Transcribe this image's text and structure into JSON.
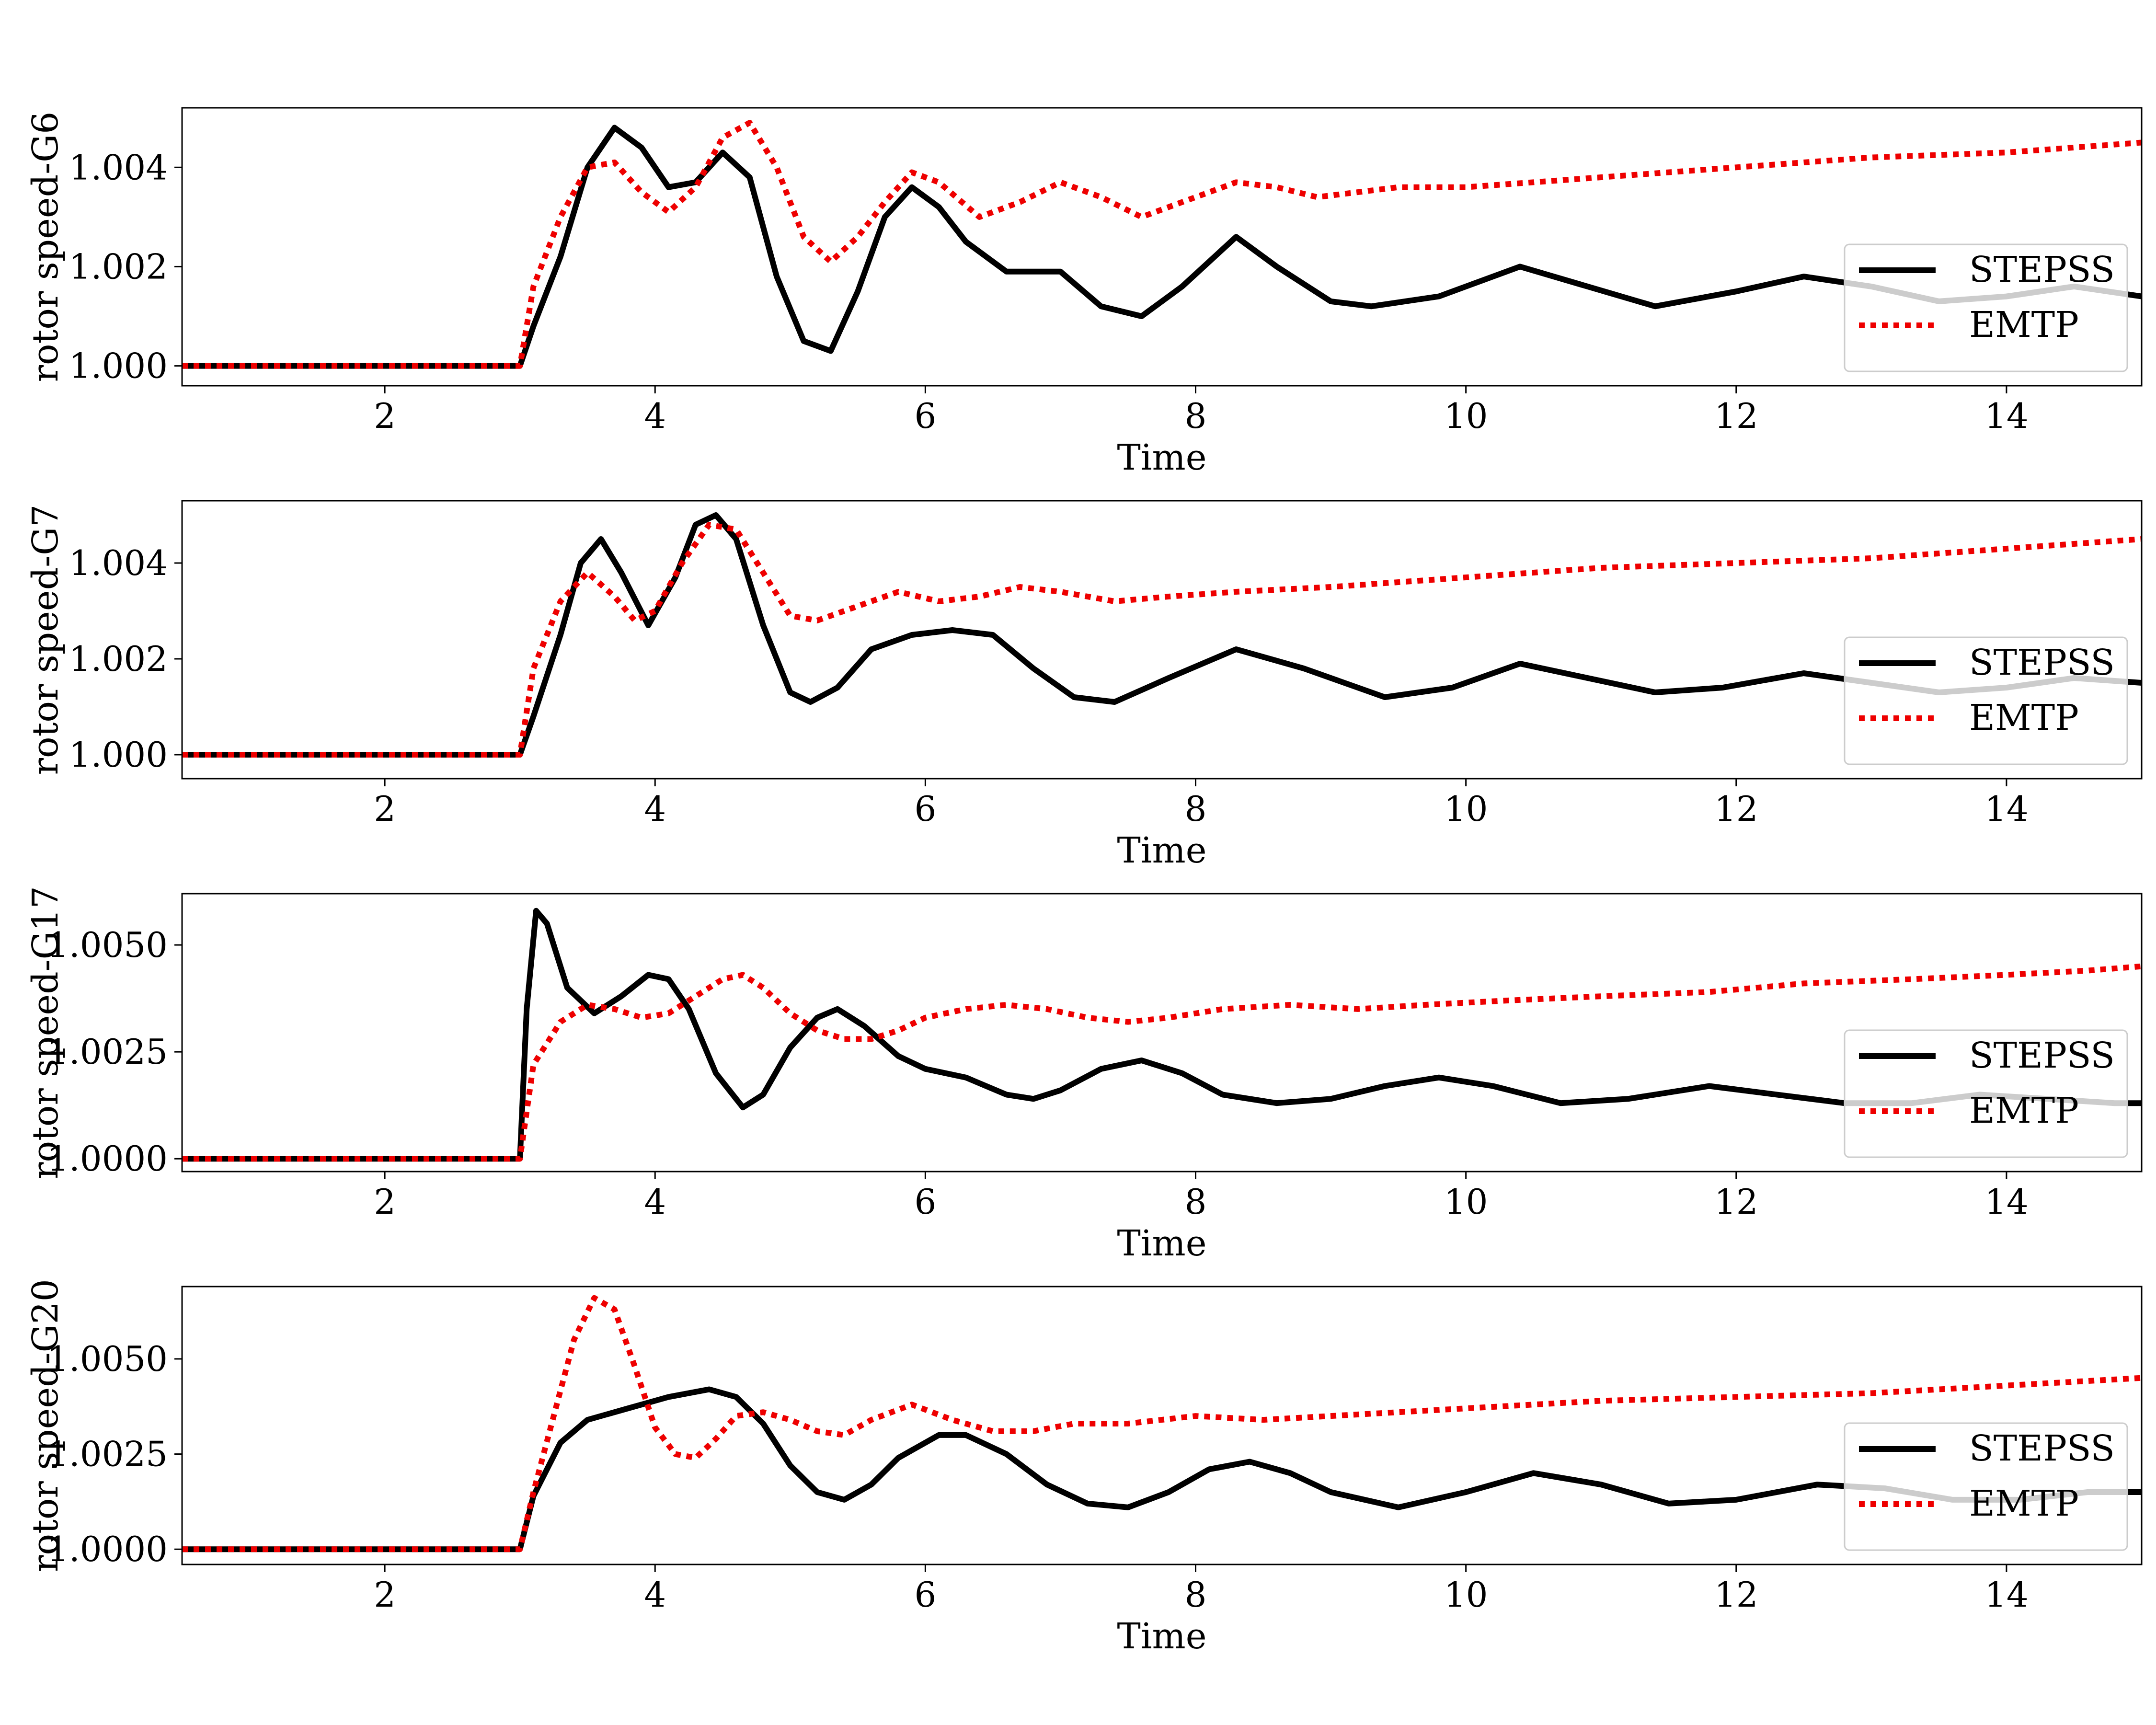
{
  "chart_data": [
    {
      "type": "line",
      "ylabel": "rotor speed-G6",
      "xlabel": "Time",
      "xlim": [
        0.5,
        15
      ],
      "ylim": [
        0.9996,
        1.0052
      ],
      "xticks": [
        2,
        4,
        6,
        8,
        10,
        12,
        14
      ],
      "yticks": [
        1.0,
        1.002,
        1.004
      ],
      "ytick_labels": [
        "1.000",
        "1.002",
        "1.004"
      ],
      "legend": "lower-right",
      "grid": false,
      "series": [
        {
          "name": "STEPSS",
          "color": "#000000",
          "style": "solid",
          "x": [
            0.5,
            3.0,
            3.1,
            3.3,
            3.5,
            3.7,
            3.9,
            4.1,
            4.3,
            4.5,
            4.7,
            4.9,
            5.1,
            5.3,
            5.5,
            5.7,
            5.9,
            6.1,
            6.3,
            6.6,
            7.0,
            7.3,
            7.6,
            7.9,
            8.3,
            8.6,
            9.0,
            9.3,
            9.8,
            10.4,
            10.9,
            11.4,
            12.0,
            12.5,
            13.0,
            13.5,
            14.0,
            14.5,
            15.0
          ],
          "y": [
            1.0,
            1.0,
            1.0008,
            1.0022,
            1.004,
            1.0048,
            1.0044,
            1.0036,
            1.0037,
            1.0043,
            1.0038,
            1.0018,
            1.0005,
            1.0003,
            1.0015,
            1.003,
            1.0036,
            1.0032,
            1.0025,
            1.0019,
            1.0019,
            1.0012,
            1.001,
            1.0016,
            1.0026,
            1.002,
            1.0013,
            1.0012,
            1.0014,
            1.002,
            1.0016,
            1.0012,
            1.0015,
            1.0018,
            1.0016,
            1.0013,
            1.0014,
            1.0016,
            1.0014
          ]
        },
        {
          "name": "EMTP",
          "color": "#ee0000",
          "style": "dotted",
          "x": [
            0.5,
            3.0,
            3.1,
            3.3,
            3.5,
            3.7,
            3.9,
            4.1,
            4.3,
            4.5,
            4.7,
            4.9,
            5.1,
            5.3,
            5.5,
            5.7,
            5.9,
            6.1,
            6.4,
            6.7,
            7.0,
            7.3,
            7.6,
            7.9,
            8.3,
            8.6,
            8.9,
            9.5,
            10.0,
            11.0,
            12.0,
            13.0,
            14.0,
            15.0
          ],
          "y": [
            1.0,
            1.0,
            1.0016,
            1.003,
            1.004,
            1.0041,
            1.0035,
            1.0031,
            1.0036,
            1.0046,
            1.0049,
            1.004,
            1.0026,
            1.0021,
            1.0026,
            1.0033,
            1.0039,
            1.0037,
            1.003,
            1.0033,
            1.0037,
            1.0034,
            1.003,
            1.0033,
            1.0037,
            1.0036,
            1.0034,
            1.0036,
            1.0036,
            1.0038,
            1.004,
            1.0042,
            1.0043,
            1.0045
          ]
        }
      ]
    },
    {
      "type": "line",
      "ylabel": "rotor speed-G7",
      "xlabel": "Time",
      "xlim": [
        0.5,
        15
      ],
      "ylim": [
        0.9995,
        1.0053
      ],
      "xticks": [
        2,
        4,
        6,
        8,
        10,
        12,
        14
      ],
      "yticks": [
        1.0,
        1.002,
        1.004
      ],
      "ytick_labels": [
        "1.000",
        "1.002",
        "1.004"
      ],
      "legend": "lower-right",
      "grid": false,
      "series": [
        {
          "name": "STEPSS",
          "color": "#000000",
          "style": "solid",
          "x": [
            0.5,
            3.0,
            3.1,
            3.3,
            3.45,
            3.6,
            3.75,
            3.95,
            4.15,
            4.3,
            4.45,
            4.6,
            4.8,
            5.0,
            5.15,
            5.35,
            5.6,
            5.9,
            6.2,
            6.5,
            6.8,
            7.1,
            7.4,
            7.8,
            8.3,
            8.8,
            9.4,
            9.9,
            10.4,
            10.9,
            11.4,
            11.9,
            12.5,
            13.0,
            13.5,
            14.0,
            14.5,
            15.0
          ],
          "y": [
            1.0,
            1.0,
            1.0008,
            1.0025,
            1.004,
            1.0045,
            1.0038,
            1.0027,
            1.0037,
            1.0048,
            1.005,
            1.0045,
            1.0027,
            1.0013,
            1.0011,
            1.0014,
            1.0022,
            1.0025,
            1.0026,
            1.0025,
            1.0018,
            1.0012,
            1.0011,
            1.0016,
            1.0022,
            1.0018,
            1.0012,
            1.0014,
            1.0019,
            1.0016,
            1.0013,
            1.0014,
            1.0017,
            1.0015,
            1.0013,
            1.0014,
            1.0016,
            1.0015
          ]
        },
        {
          "name": "EMTP",
          "color": "#ee0000",
          "style": "dotted",
          "x": [
            0.5,
            3.0,
            3.1,
            3.3,
            3.5,
            3.7,
            3.85,
            4.0,
            4.2,
            4.4,
            4.6,
            4.8,
            5.0,
            5.2,
            5.5,
            5.8,
            6.1,
            6.4,
            6.7,
            7.0,
            7.4,
            7.8,
            8.3,
            9.0,
            10.0,
            11.0,
            12.0,
            13.0,
            14.0,
            15.0
          ],
          "y": [
            1.0,
            1.0,
            1.0018,
            1.0032,
            1.0038,
            1.0033,
            1.0028,
            1.003,
            1.004,
            1.0048,
            1.0047,
            1.0038,
            1.0029,
            1.0028,
            1.0031,
            1.0034,
            1.0032,
            1.0033,
            1.0035,
            1.0034,
            1.0032,
            1.0033,
            1.0034,
            1.0035,
            1.0037,
            1.0039,
            1.004,
            1.0041,
            1.0043,
            1.0045
          ]
        }
      ]
    },
    {
      "type": "line",
      "ylabel": "rotor speed-G17",
      "xlabel": "Time",
      "xlim": [
        0.5,
        15
      ],
      "ylim": [
        0.9997,
        1.0062
      ],
      "xticks": [
        2,
        4,
        6,
        8,
        10,
        12,
        14
      ],
      "yticks": [
        1.0,
        1.0025,
        1.005
      ],
      "ytick_labels": [
        "1.0000",
        "1.0025",
        "1.0050"
      ],
      "legend": "lower-right",
      "grid": false,
      "series": [
        {
          "name": "STEPSS",
          "color": "#000000",
          "style": "solid",
          "x": [
            0.5,
            3.0,
            3.05,
            3.12,
            3.2,
            3.35,
            3.55,
            3.75,
            3.95,
            4.1,
            4.25,
            4.45,
            4.65,
            4.8,
            5.0,
            5.2,
            5.35,
            5.55,
            5.8,
            6.0,
            6.3,
            6.6,
            6.8,
            7.0,
            7.3,
            7.6,
            7.9,
            8.2,
            8.6,
            9.0,
            9.4,
            9.8,
            10.2,
            10.7,
            11.2,
            11.8,
            12.3,
            12.8,
            13.3,
            13.8,
            14.3,
            14.8,
            15.0
          ],
          "y": [
            1.0,
            1.0,
            1.0035,
            1.0058,
            1.0055,
            1.004,
            1.0034,
            1.0038,
            1.0043,
            1.0042,
            1.0035,
            1.002,
            1.0012,
            1.0015,
            1.0026,
            1.0033,
            1.0035,
            1.0031,
            1.0024,
            1.0021,
            1.0019,
            1.0015,
            1.0014,
            1.0016,
            1.0021,
            1.0023,
            1.002,
            1.0015,
            1.0013,
            1.0014,
            1.0017,
            1.0019,
            1.0017,
            1.0013,
            1.0014,
            1.0017,
            1.0015,
            1.0013,
            1.0013,
            1.0015,
            1.0014,
            1.0013,
            1.0013
          ]
        },
        {
          "name": "EMTP",
          "color": "#ee0000",
          "style": "dotted",
          "x": [
            0.5,
            3.0,
            3.1,
            3.3,
            3.5,
            3.7,
            3.9,
            4.1,
            4.3,
            4.5,
            4.65,
            4.8,
            5.0,
            5.2,
            5.4,
            5.6,
            5.8,
            6.0,
            6.3,
            6.6,
            6.9,
            7.2,
            7.5,
            7.8,
            8.2,
            8.7,
            9.2,
            9.7,
            10.3,
            11.0,
            11.8,
            12.5,
            13.3,
            14.0,
            14.6,
            15.0
          ],
          "y": [
            1.0,
            1.0,
            1.0022,
            1.0032,
            1.0036,
            1.0035,
            1.0033,
            1.0034,
            1.0038,
            1.0042,
            1.0043,
            1.004,
            1.0034,
            1.003,
            1.0028,
            1.0028,
            1.003,
            1.0033,
            1.0035,
            1.0036,
            1.0035,
            1.0033,
            1.0032,
            1.0033,
            1.0035,
            1.0036,
            1.0035,
            1.0036,
            1.0037,
            1.0038,
            1.0039,
            1.0041,
            1.0042,
            1.0043,
            1.0044,
            1.0045
          ]
        }
      ]
    },
    {
      "type": "line",
      "ylabel": "rotor speed-G20",
      "xlabel": "Time",
      "xlim": [
        0.5,
        15
      ],
      "ylim": [
        0.9996,
        1.0069
      ],
      "xticks": [
        2,
        4,
        6,
        8,
        10,
        12,
        14
      ],
      "yticks": [
        1.0,
        1.0025,
        1.005
      ],
      "ytick_labels": [
        "1.0000",
        "1.0025",
        "1.0050"
      ],
      "legend": "lower-right",
      "grid": false,
      "series": [
        {
          "name": "STEPSS",
          "color": "#000000",
          "style": "solid",
          "x": [
            0.5,
            3.0,
            3.1,
            3.3,
            3.5,
            3.8,
            4.1,
            4.4,
            4.6,
            4.8,
            5.0,
            5.2,
            5.4,
            5.6,
            5.8,
            6.1,
            6.3,
            6.6,
            6.9,
            7.2,
            7.5,
            7.8,
            8.1,
            8.4,
            8.7,
            9.0,
            9.5,
            10.0,
            10.5,
            11.0,
            11.5,
            12.0,
            12.6,
            13.1,
            13.6,
            14.1,
            14.6,
            15.0
          ],
          "y": [
            1.0,
            1.0,
            1.0014,
            1.0028,
            1.0034,
            1.0037,
            1.004,
            1.0042,
            1.004,
            1.0033,
            1.0022,
            1.0015,
            1.0013,
            1.0017,
            1.0024,
            1.003,
            1.003,
            1.0025,
            1.0017,
            1.0012,
            1.0011,
            1.0015,
            1.0021,
            1.0023,
            1.002,
            1.0015,
            1.0011,
            1.0015,
            1.002,
            1.0017,
            1.0012,
            1.0013,
            1.0017,
            1.0016,
            1.0013,
            1.0013,
            1.0015,
            1.0015
          ]
        },
        {
          "name": "EMTP",
          "color": "#ee0000",
          "style": "dotted",
          "x": [
            0.5,
            3.0,
            3.1,
            3.25,
            3.4,
            3.55,
            3.7,
            3.85,
            4.0,
            4.15,
            4.3,
            4.45,
            4.6,
            4.8,
            5.0,
            5.2,
            5.4,
            5.6,
            5.9,
            6.2,
            6.5,
            6.8,
            7.1,
            7.5,
            8.0,
            8.5,
            9.0,
            9.5,
            10.0,
            11.0,
            12.0,
            13.0,
            14.0,
            15.0
          ],
          "y": [
            1.0,
            1.0,
            1.0015,
            1.0035,
            1.0055,
            1.0066,
            1.0063,
            1.0048,
            1.0032,
            1.0025,
            1.0024,
            1.0029,
            1.0035,
            1.0036,
            1.0034,
            1.0031,
            1.003,
            1.0034,
            1.0038,
            1.0034,
            1.0031,
            1.0031,
            1.0033,
            1.0033,
            1.0035,
            1.0034,
            1.0035,
            1.0036,
            1.0037,
            1.0039,
            1.004,
            1.0041,
            1.0043,
            1.0045
          ]
        }
      ]
    }
  ]
}
